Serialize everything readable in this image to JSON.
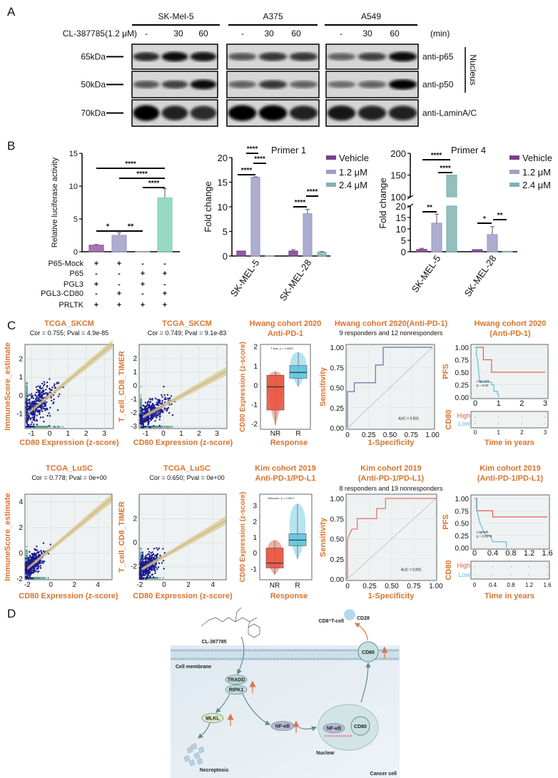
{
  "panel_labels": {
    "a": "A",
    "b": "B",
    "c": "C",
    "d": "D"
  },
  "panel_a": {
    "treatment_label": "CL-387785(1.2 μM)",
    "time_unit": "(min)",
    "cell_lines": [
      {
        "name": "SK-Mel-5",
        "times": [
          "-",
          "30",
          "60"
        ]
      },
      {
        "name": "A375",
        "times": [
          "-",
          "30",
          "60"
        ]
      },
      {
        "name": "A549",
        "times": [
          "-",
          "30",
          "60"
        ]
      }
    ],
    "rows": [
      {
        "marker": "65kDa",
        "antibody": "anti-p65",
        "band_intensity": [
          [
            0.8,
            0.95,
            0.9
          ],
          [
            0.6,
            0.75,
            0.75
          ],
          [
            0.55,
            0.7,
            0.95
          ]
        ]
      },
      {
        "marker": "50kDa",
        "antibody": "anti-p50",
        "band_intensity": [
          [
            0.6,
            0.7,
            0.95
          ],
          [
            0.55,
            0.75,
            0.55
          ],
          [
            0.5,
            0.55,
            1.0
          ]
        ]
      },
      {
        "marker": "70kDa",
        "antibody": "anti-LaminA/C",
        "band_intensity": [
          [
            1.0,
            0.85,
            0.8
          ],
          [
            1.0,
            1.0,
            0.85
          ],
          [
            0.9,
            0.85,
            0.85
          ]
        ]
      }
    ],
    "fraction_label": "Nucleus"
  },
  "chart_data": [
    {
      "type": "bar",
      "ylabel": "Relative luciferase activity",
      "ylim": [
        0,
        15
      ],
      "yticks": [
        "0",
        "5",
        "10",
        "15"
      ],
      "values": [
        1.0,
        2.5,
        0.05,
        8.2
      ],
      "errors": [
        0.1,
        0.4,
        0.02,
        1.4
      ],
      "colors": [
        "#9a5aa6",
        "#9f9ec9",
        "#9f9ec9",
        "#86d2b6"
      ],
      "conditions": [
        {
          "label": "P65-Mock",
          "signs": [
            "+",
            "+",
            "-",
            "-"
          ]
        },
        {
          "label": "P65",
          "signs": [
            "-",
            "-",
            "+",
            "+"
          ]
        },
        {
          "label": "PGL3",
          "signs": [
            "+",
            "-",
            "+",
            "-"
          ]
        },
        {
          "label": "PGL3-CD80",
          "signs": [
            "-",
            "+",
            "-",
            "+"
          ]
        },
        {
          "label": "PRLTK",
          "signs": [
            "+",
            "+",
            "+",
            "+"
          ]
        }
      ],
      "significance": [
        {
          "label": "*",
          "from": 0,
          "to": 1
        },
        {
          "label": "**",
          "from": 1,
          "to": 2
        },
        {
          "label": "****",
          "from": 0,
          "to": 3
        },
        {
          "label": "****",
          "from": 1,
          "to": 3
        },
        {
          "label": "****",
          "from": 2,
          "to": 3
        }
      ]
    },
    {
      "type": "bar",
      "title": "Primer 1",
      "ylabel": "Fold change",
      "ylim": [
        0,
        20
      ],
      "yticks": [
        "0",
        "5",
        "10",
        "15",
        "20"
      ],
      "categories": [
        "SK-MEL-5",
        "SK-MEL-28"
      ],
      "series": [
        {
          "name": "Vehicle",
          "values": [
            1.0,
            1.0
          ],
          "errors": [
            0.05,
            0.3
          ],
          "color": "#7b3f8c"
        },
        {
          "name": "1.2 μM",
          "values": [
            16.0,
            8.6
          ],
          "errors": [
            0.1,
            0.9
          ],
          "color": "#9f9ec9"
        },
        {
          "name": "2.4 μM",
          "values": [
            0.05,
            0.8
          ],
          "errors": [
            0.0,
            0.1
          ],
          "color": "#7fb3b3"
        }
      ],
      "significance": [
        "****",
        "****",
        "****",
        "****",
        "****"
      ],
      "legend": "right"
    },
    {
      "type": "bar",
      "title": "Primer 4",
      "ylabel": "Fold change",
      "ylim": [
        0,
        200
      ],
      "axis_break": [
        20,
        100
      ],
      "yticks": [
        "0",
        "5",
        "10",
        "15",
        "20",
        "100",
        "150",
        "200"
      ],
      "categories": [
        "SK-MEL-5",
        "SK-MEL-28"
      ],
      "series": [
        {
          "name": "Vehicle",
          "values": [
            1.0,
            0.9
          ],
          "errors": [
            0.5,
            0.1
          ],
          "color": "#7b3f8c"
        },
        {
          "name": "1.2 μM",
          "values": [
            12.5,
            7.5
          ],
          "errors": [
            4.0,
            3.5
          ],
          "color": "#9f9ec9"
        },
        {
          "name": "2.4 μM",
          "values": [
            150,
            0.2
          ],
          "errors": [
            0.0,
            0.0
          ],
          "color": "#7fb3b3"
        }
      ],
      "significance": [
        "**",
        "****",
        "****",
        "*",
        "**"
      ],
      "legend": "right"
    }
  ],
  "panel_c": {
    "scatter": [
      {
        "title": "TCGA_SKCM",
        "stats": "Cor = 0.755; Pval = 4.9e-85",
        "cor": 0.755,
        "xlabel": "CD80 Expression (z-score)",
        "ylabel": "ImmuneScore_estimate",
        "xticks": [
          "-1",
          "0",
          "1",
          "2",
          "3"
        ],
        "yticks": [
          "-1",
          "0",
          "1",
          "2"
        ]
      },
      {
        "title": "TCGA_SKCM",
        "stats": "Cor = 0.749; Pval = 9.1e-83",
        "cor": 0.749,
        "xlabel": "CD80 Expression (z-score)",
        "ylabel": "T_cell_CD8_TIMER",
        "xticks": [
          "-1",
          "0",
          "1",
          "2",
          "3"
        ],
        "yticks": [
          "-3",
          "-2",
          "-1",
          "0",
          "1",
          "2"
        ]
      },
      {
        "title": "TCGA_LuSC",
        "stats": "Cor = 0.778; Pval = 0e+00",
        "cor": 0.778,
        "xlabel": "CD80 Expression (z-score)",
        "ylabel": "ImmuneScore_estimate",
        "xticks": [
          "-2",
          "0",
          "2",
          "4"
        ],
        "yticks": [
          "-2",
          "0",
          "2",
          "4"
        ]
      },
      {
        "title": "TCGA_LuSC",
        "stats": "Cor = 0.650; Pval = 0e+00",
        "cor": 0.65,
        "xlabel": "CD80 Expression (z-score)",
        "ylabel": "T_cell_CD8_TIMER",
        "xticks": [
          "-2",
          "0",
          "2",
          "4"
        ],
        "yticks": [
          "-2",
          "0",
          "2"
        ]
      }
    ],
    "box": [
      {
        "title1": "Hwang cohort 2020",
        "title2": "Anti-PD-1",
        "test": "T-test, p = 0.0053",
        "ylabel": "CD80 Expression (z-score)",
        "xlabel": "Response",
        "groups": [
          "NR",
          "R"
        ],
        "yticks": [
          "-2",
          "-1",
          "0",
          "1",
          "2"
        ],
        "stats": [
          {
            "q1": -1.3,
            "median": -0.1,
            "q3": 0.5,
            "min": -2.1,
            "max": 0.7,
            "color": "#e8503a"
          },
          {
            "q1": 0.35,
            "median": 0.65,
            "q3": 1.0,
            "min": -0.1,
            "max": 1.7,
            "color": "#5bc3df"
          }
        ]
      },
      {
        "title1": "Kim cohort 2019",
        "title2": "Anti-PD-1/PD-L1",
        "test": "Wilcoxon, p = 0.0017",
        "ylabel": "CD80 Expression (z-score)",
        "xlabel": "Response",
        "groups": [
          "NR",
          "R"
        ],
        "yticks": [
          "-1",
          "0",
          "1",
          "2",
          "3"
        ],
        "stats": [
          {
            "q1": -0.95,
            "median": -0.65,
            "q3": 0.3,
            "min": -1.4,
            "max": 0.8,
            "color": "#e8503a"
          },
          {
            "q1": 0.45,
            "median": 0.8,
            "q3": 1.2,
            "min": -0.4,
            "max": 3.1,
            "color": "#5bc3df"
          }
        ]
      }
    ],
    "roc": [
      {
        "title": "Hwang cohort 2020(Anti-PD-1)",
        "subtitle": "9 responders and 12 nonresponders",
        "auc": "AUC = 0.815",
        "xlabel": "1-Specificity",
        "ylabel": "Sensitivity",
        "ticks": [
          "0.00",
          "0.25",
          "0.50",
          "0.75",
          "1.00"
        ],
        "xticks": [
          "0",
          "0.25",
          "0.50",
          "0.75",
          "1.00"
        ],
        "color": "#6b70b2",
        "curve": [
          [
            0,
            0
          ],
          [
            0,
            0.45
          ],
          [
            0.08,
            0.45
          ],
          [
            0.08,
            0.56
          ],
          [
            0.33,
            0.56
          ],
          [
            0.33,
            0.78
          ],
          [
            0.42,
            0.78
          ],
          [
            0.42,
            1
          ],
          [
            1,
            1
          ]
        ]
      },
      {
        "title": "Kim cohort 2019",
        "title2": "(Anti-PD-1/PD-L1)",
        "subtitle": "8 responders and 19 nonresponders",
        "auc": "AUC = 0.891",
        "xlabel": "1-Specificity",
        "ylabel": "Sensitivity",
        "ticks": [
          "0.00",
          "0.25",
          "0.50",
          "0.75",
          "1.00"
        ],
        "xticks": [
          "0",
          "0.25",
          "0.50",
          "0.75",
          "1.00"
        ],
        "color": "#e0705e",
        "curve": [
          [
            0,
            0
          ],
          [
            0,
            0.5
          ],
          [
            0.05,
            0.62
          ],
          [
            0.11,
            0.62
          ],
          [
            0.11,
            0.75
          ],
          [
            0.33,
            0.75
          ],
          [
            0.33,
            0.875
          ],
          [
            0.43,
            0.875
          ],
          [
            0.43,
            1
          ],
          [
            1,
            1
          ]
        ]
      }
    ],
    "km": [
      {
        "title1": "Hwang cohort 2020",
        "title2": "(Anti-PD-1)",
        "ylabel": "PFS",
        "xlabel": "Time in years",
        "risk_label": "CD80",
        "high": "High",
        "low": "Low",
        "logrank": "Log-rank",
        "pval": "p = 0.04",
        "xmax": 3,
        "xticks": [
          "0",
          "1",
          "2",
          "3"
        ],
        "yticks": [
          "0.00",
          "0.25",
          "0.50",
          "0.75",
          "1.00"
        ],
        "high_color": "#e0614f",
        "low_color": "#68bcd6",
        "high_curve": [
          [
            0,
            1
          ],
          [
            0.35,
            1
          ],
          [
            0.35,
            0.75
          ],
          [
            0.7,
            0.75
          ],
          [
            0.7,
            0.5
          ],
          [
            3,
            0.5
          ]
        ],
        "low_curve": [
          [
            0,
            1
          ],
          [
            0.05,
            1
          ],
          [
            0.05,
            0.83
          ],
          [
            0.1,
            0.75
          ],
          [
            0.15,
            0.5
          ],
          [
            0.2,
            0.3
          ],
          [
            0.7,
            0.3
          ],
          [
            0.7,
            0.25
          ],
          [
            0.8,
            0.25
          ],
          [
            0.8,
            0.12
          ],
          [
            0.95,
            0.12
          ],
          [
            0.95,
            0.06
          ],
          [
            1.0,
            0.06
          ],
          [
            1.0,
            0
          ]
        ]
      },
      {
        "title1": "Kim cohort 2019",
        "title2": "(Anti-PD-1/PD-L1)",
        "ylabel": "PFS",
        "xlabel": "Time in years",
        "risk_label": "CD80",
        "high": "High",
        "low": "Low",
        "logrank": "Logrank",
        "pval": "p = 0.0074",
        "xmax": 1.6,
        "xticks": [
          "0",
          "0.4",
          "0.8",
          "1.2",
          "1.6"
        ],
        "yticks": [
          "0.00",
          "0.25",
          "0.50",
          "0.75",
          "1.00"
        ],
        "high_color": "#e0614f",
        "low_color": "#68bcd6",
        "high_curve": [
          [
            0,
            1
          ],
          [
            0.05,
            1
          ],
          [
            0.05,
            0.75
          ],
          [
            0.4,
            0.75
          ],
          [
            0.4,
            0.625
          ],
          [
            1.6,
            0.625
          ]
        ],
        "low_curve": [
          [
            0,
            1
          ],
          [
            0.04,
            1
          ],
          [
            0.04,
            0.8
          ],
          [
            0.08,
            0.65
          ],
          [
            0.12,
            0.5
          ],
          [
            0.18,
            0.38
          ],
          [
            0.25,
            0.25
          ],
          [
            0.35,
            0.25
          ],
          [
            0.4,
            0.12
          ],
          [
            0.7,
            0.12
          ],
          [
            0.7,
            0
          ]
        ]
      }
    ]
  },
  "panel_d": {
    "compound": "CL-387785",
    "membrane": "Cell membrane",
    "tradd": "TRADD",
    "ripk1": "RIPK1",
    "mlkl": "MLKL",
    "nfkb": "NF-κB",
    "nfkb_nuclear": "NF-κB",
    "cd80_nuclear": "CD80",
    "cd80_membrane": "CD80",
    "nuclear": "Nuclear",
    "necroptosis": "Necroptosis",
    "cancer_cell": "Cancer cell",
    "tcell": "CD8⁺T-cell",
    "cd28": "CD28",
    "up_arrow_color": "#e08a5a"
  }
}
